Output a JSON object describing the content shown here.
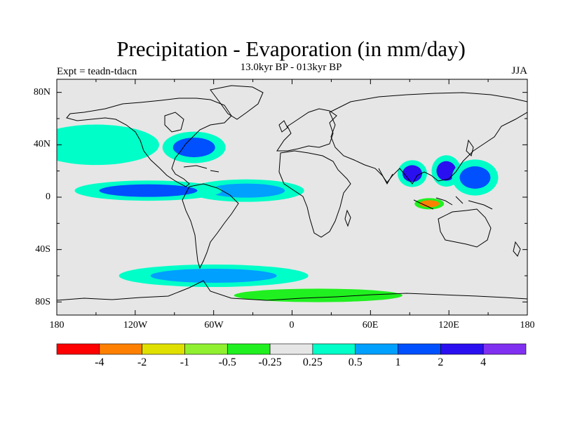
{
  "title": "Precipitation - Evaporation (in mm/day)",
  "subtitle": "13.0kyr BP - 013kyr BP",
  "experiment": "Expt = teadn-tdacn",
  "season": "JJA",
  "lat_labels": [
    "80N",
    "40N",
    "0",
    "40S",
    "80S"
  ],
  "lon_labels": [
    "180",
    "120W",
    "60W",
    "0",
    "60E",
    "120E",
    "180"
  ],
  "colorbar": {
    "colors": [
      "#ff0000",
      "#ff8000",
      "#e0e000",
      "#90f030",
      "#20f020",
      "#e6e6e6",
      "#00ffc8",
      "#00a0ff",
      "#0050ff",
      "#2a10f0",
      "#8030f0"
    ],
    "labels": [
      "-4",
      "-2",
      "-1",
      "-0.5",
      "-0.25",
      "0.25",
      "0.5",
      "1",
      "2",
      "4"
    ]
  },
  "chart_data": {
    "type": "heatmap",
    "title": "Precipitation - Evaporation (in mm/day)",
    "subtitle": "13.0kyr BP - 013kyr BP",
    "projection": "cylindrical equidistant",
    "lon_range": [
      -180,
      180
    ],
    "lat_range": [
      -90,
      90
    ],
    "units": "mm/day",
    "levels": [
      -4,
      -2,
      -1,
      -0.5,
      -0.25,
      0.25,
      0.5,
      1,
      2,
      4
    ],
    "features": [
      {
        "name": "north-pacific-wet",
        "lon": -150,
        "lat": 40,
        "value": 0.4
      },
      {
        "name": "us-east-wet",
        "lon": -75,
        "lat": 38,
        "value": 1.5
      },
      {
        "name": "tropical-atlantic-wet",
        "lon": -35,
        "lat": 5,
        "value": 0.7
      },
      {
        "name": "east-pacific-itcz-wet",
        "lon": -110,
        "lat": 5,
        "value": 1.5
      },
      {
        "name": "bay-of-bengal-wet",
        "lon": 92,
        "lat": 18,
        "value": 2.5
      },
      {
        "name": "south-china-sea-wet",
        "lon": 118,
        "lat": 20,
        "value": 3
      },
      {
        "name": "west-pacific-wet",
        "lon": 140,
        "lat": 15,
        "value": 1.5
      },
      {
        "name": "maritime-continent-dry",
        "lon": 105,
        "lat": -5,
        "value": -3
      },
      {
        "name": "southern-ocean-wet",
        "lon": -60,
        "lat": -60,
        "value": 0.6
      },
      {
        "name": "southern-ocean-dry",
        "lon": 20,
        "lat": -75,
        "value": -0.4
      }
    ]
  }
}
